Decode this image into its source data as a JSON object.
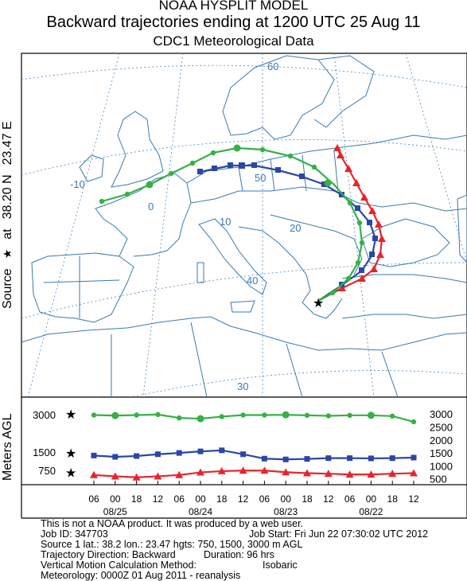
{
  "header": {
    "title": "NOAA HYSPLIT MODEL",
    "subtitle": "Backward trajectories ending at 1200 UTC 25 Aug 11",
    "data_source": "CDC1 Meteorological Data"
  },
  "side_label": {
    "source_word": "Source",
    "star_glyph": "★",
    "at_word": "at",
    "lat": "38.20 N",
    "lon": "23.47 E"
  },
  "map": {
    "graticule_labels": {
      "lon": [
        "-10",
        "0",
        "10",
        "20",
        "30",
        "40",
        "50",
        "60"
      ],
      "lat": [
        "30",
        "40",
        "50",
        "60"
      ],
      "lon_values": [
        -10,
        0,
        10,
        20
      ],
      "lat_values": [
        30,
        40,
        50,
        60
      ]
    },
    "colors": {
      "coast": "#3a7ab0",
      "grid": "#4a86c0",
      "red": "#e8242c",
      "blue": "#2a46a6",
      "green": "#34b244"
    },
    "source_marker": "black-star"
  },
  "profile": {
    "ylabel": "Meters AGL",
    "left_ticks": [
      "3000",
      "1500",
      "750"
    ],
    "right_ticks": [
      "3000",
      "2500",
      "2000",
      "1500",
      "1000",
      "500"
    ],
    "time_ticks": [
      "06",
      "00",
      "18",
      "12",
      "06",
      "00",
      "18",
      "12",
      "06",
      "00",
      "18",
      "12",
      "06",
      "00",
      "18",
      "12"
    ],
    "date_labels": [
      "08/25",
      "08/24",
      "08/23",
      "08/22"
    ]
  },
  "chart_data": {
    "type": "line",
    "title": "Backward trajectories ending at 1200 UTC 25 Aug 11",
    "ylabel": "Meters AGL",
    "x": [
      "06",
      "00",
      "18",
      "12",
      "06",
      "00",
      "18",
      "12",
      "06",
      "00",
      "18",
      "12",
      "06",
      "00",
      "18",
      "12"
    ],
    "series": [
      {
        "color": "#34b244",
        "values": [
          2960,
          2940,
          2960,
          2980,
          2850,
          2820,
          2900,
          2960,
          2960,
          2970,
          2950,
          2930,
          2950,
          2950,
          2920,
          2700
        ]
      },
      {
        "color": "#2a46a6",
        "values": [
          1400,
          1350,
          1380,
          1450,
          1500,
          1560,
          1600,
          1450,
          1280,
          1250,
          1270,
          1300,
          1300,
          1290,
          1300,
          1320
        ]
      },
      {
        "color": "#e8242c",
        "values": [
          650,
          600,
          560,
          600,
          650,
          750,
          800,
          820,
          820,
          760,
          720,
          700,
          670,
          670,
          700,
          720
        ]
      }
    ]
  },
  "footer": {
    "line1": "This is not a NOAA product. It was produced by a web user.",
    "job_id": "Job ID: 347703",
    "job_start": "Job Start: Fri Jun 22 07:30:02 UTC 2012",
    "source1": "Source 1 lat.: 38.2  lon.: 23.47  hgts: 750, 1500, 3000 m AGL",
    "direction": "Trajectory Direction: Backward",
    "duration": "Duration: 96 hrs",
    "vertical_label": "Vertical Motion Calculation Method:",
    "vertical_value": "Isobaric",
    "meteorology": "Meteorology: 0000Z 01 Aug 2011 - reanalysis"
  }
}
